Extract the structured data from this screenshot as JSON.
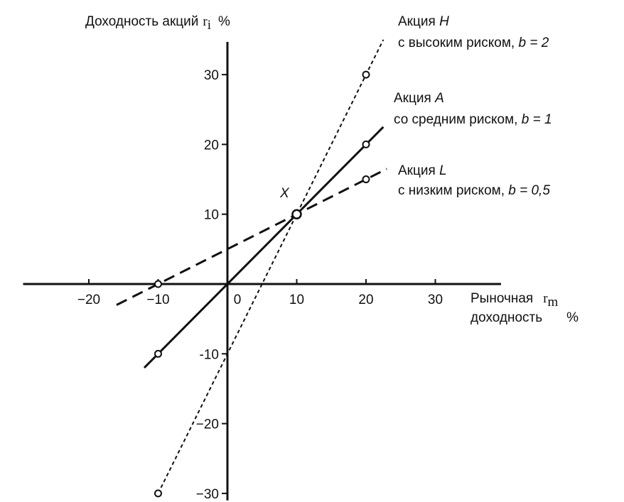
{
  "chart_data": {
    "type": "line",
    "ylabel": "Доходность акций",
    "ylabel_symbol": "r",
    "ylabel_subscript": "i",
    "ylabel_unit": "%",
    "xlabel_line1": "Рыночная",
    "xlabel_line2": "доходность",
    "xlabel_symbol": "r",
    "xlabel_subscript": "m",
    "xlabel_unit": "%",
    "xlim": [
      -30,
      40
    ],
    "ylim": [
      -31,
      35
    ],
    "x_ticks": [
      -20,
      -10,
      0,
      10,
      20,
      30
    ],
    "x_tick_labels": [
      "−20",
      "−10",
      "0",
      "10",
      "20",
      "30"
    ],
    "y_ticks": [
      30,
      20,
      10,
      -10,
      -20,
      -30
    ],
    "y_tick_labels": [
      "30",
      "20",
      "10",
      "-10",
      "−20",
      "−30"
    ],
    "intersection": {
      "label": "X",
      "x": 10,
      "y": 10
    },
    "series": [
      {
        "id": "H",
        "name_line1": "Акция",
        "name_letter": "H",
        "name_line2": "с высоким риском,",
        "beta_label": "b = 2",
        "style": "dotted",
        "line_x": [
          -10,
          22.5
        ],
        "points_x": [
          -10,
          20
        ],
        "slope": 2,
        "intercept": -10
      },
      {
        "id": "A",
        "name_line1": "Акция",
        "name_letter": "A",
        "name_line2": "со средним риском,",
        "beta_label": "b = 1",
        "style": "solid",
        "line_x": [
          -12,
          22.5
        ],
        "points_x": [
          -10,
          20
        ],
        "slope": 1,
        "intercept": 0
      },
      {
        "id": "L",
        "name_line1": "Акция",
        "name_letter": "L",
        "name_line2": "с низким риском,",
        "beta_label": "b = 0,5",
        "style": "dashed",
        "line_x": [
          -16,
          23
        ],
        "points_x": [
          -10,
          20
        ],
        "slope": 0.5,
        "intercept": 5
      }
    ]
  }
}
